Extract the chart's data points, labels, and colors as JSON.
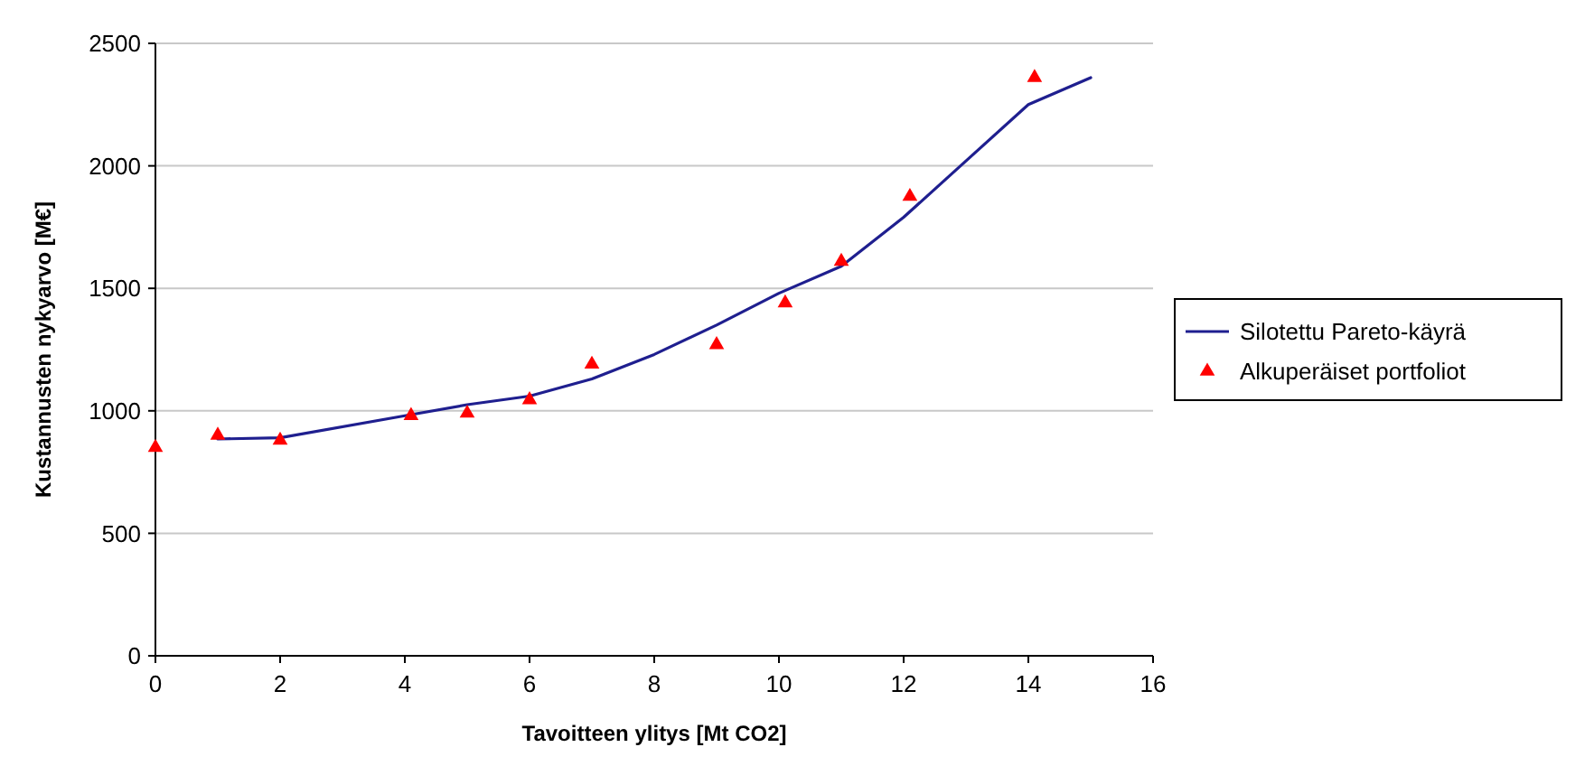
{
  "chart_data": {
    "type": "line",
    "xlabel": "Tavoitteen ylitys [Mt CO2]",
    "ylabel": "Kustannusten nykyarvo [M€]",
    "xlim": [
      0,
      16
    ],
    "xticks": [
      0,
      2,
      4,
      6,
      8,
      10,
      12,
      14,
      16
    ],
    "ylim": [
      0,
      2500
    ],
    "yticks": [
      0,
      500,
      1000,
      1500,
      2000,
      2500
    ],
    "grid": "y",
    "legend": "right",
    "series": [
      {
        "name": "Silotettu Pareto-käyrä",
        "color": "#1f1f8f",
        "marker": "none",
        "x": [
          1,
          2,
          4,
          5,
          6,
          7,
          8,
          9,
          10,
          11,
          12,
          13,
          14,
          15
        ],
        "values": [
          885,
          890,
          980,
          1025,
          1060,
          1130,
          1230,
          1350,
          1480,
          1590,
          1790,
          2020,
          2250,
          2360
        ]
      },
      {
        "name": "Alkuperäiset portfoliot",
        "type": "scatter",
        "color": "#ff0000",
        "marker": "triangle",
        "x": [
          0,
          1,
          2,
          4.1,
          5,
          6,
          7,
          9,
          10.1,
          11,
          12.1,
          14.1
        ],
        "values": [
          850,
          900,
          880,
          980,
          990,
          1045,
          1190,
          1270,
          1440,
          1610,
          1875,
          2360
        ]
      }
    ]
  }
}
